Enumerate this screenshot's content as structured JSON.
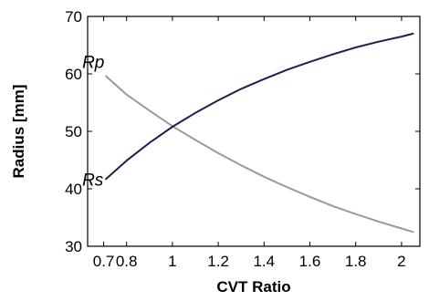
{
  "chart_data": {
    "type": "line",
    "title": "",
    "xlabel": "CVT Ratio",
    "ylabel": "Radius [mm]",
    "xlim": [
      0.63,
      2.08
    ],
    "ylim": [
      30,
      70
    ],
    "x_ticks": [
      0.7,
      0.8,
      1,
      1.2,
      1.4,
      1.6,
      1.8,
      2
    ],
    "x_tick_labels": [
      "0.7",
      "0.8",
      "1",
      "1.2",
      "1.4",
      "1.6",
      "1.8",
      "2"
    ],
    "y_ticks": [
      30,
      40,
      50,
      60,
      70
    ],
    "y_tick_labels": [
      "30",
      "40",
      "50",
      "60",
      "70"
    ],
    "grid": false,
    "series": [
      {
        "name": "Rp",
        "color": "#9a9a9a",
        "x": [
          0.71,
          0.8,
          0.9,
          1.0,
          1.1,
          1.2,
          1.3,
          1.4,
          1.5,
          1.6,
          1.7,
          1.8,
          1.9,
          2.0,
          2.05
        ],
        "y": [
          59.6,
          56.4,
          53.6,
          50.9,
          48.5,
          46.2,
          44.1,
          42.1,
          40.3,
          38.6,
          37.0,
          35.6,
          34.3,
          33.1,
          32.5
        ]
      },
      {
        "name": "Rs",
        "color": "#1f1f4f",
        "x": [
          0.71,
          0.8,
          0.9,
          1.0,
          1.1,
          1.2,
          1.3,
          1.4,
          1.5,
          1.6,
          1.7,
          1.8,
          1.9,
          2.0,
          2.05
        ],
        "y": [
          41.7,
          44.9,
          48.0,
          50.8,
          53.2,
          55.4,
          57.4,
          59.1,
          60.7,
          62.1,
          63.4,
          64.6,
          65.6,
          66.5,
          67.0
        ]
      }
    ]
  }
}
